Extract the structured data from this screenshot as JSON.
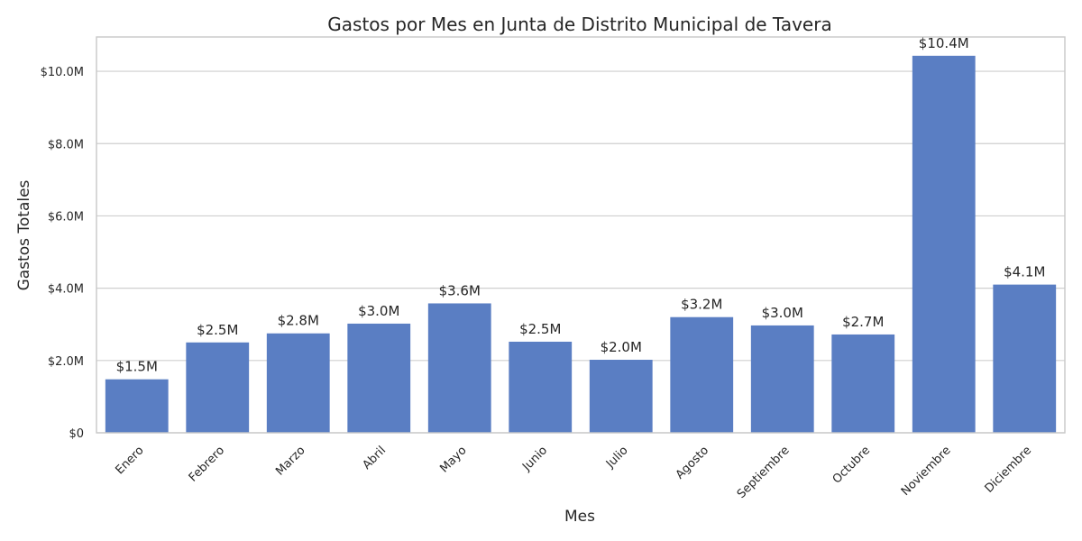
{
  "chart_data": {
    "type": "bar",
    "title": "Gastos por Mes en Junta de Distrito Municipal de Tavera",
    "xlabel": "Mes",
    "ylabel": "Gastos Totales",
    "categories": [
      "Enero",
      "Febrero",
      "Marzo",
      "Abril",
      "Mayo",
      "Junio",
      "Julio",
      "Agosto",
      "Septiembre",
      "Octubre",
      "Noviembre",
      "Diciembre"
    ],
    "values": [
      1480000,
      2500000,
      2750000,
      3020000,
      3580000,
      2520000,
      2020000,
      3200000,
      2970000,
      2720000,
      10430000,
      4100000
    ],
    "value_labels": [
      "$1.5M",
      "$2.5M",
      "$2.8M",
      "$3.0M",
      "$3.6M",
      "$2.5M",
      "$2.0M",
      "$3.2M",
      "$3.0M",
      "$2.7M",
      "$10.4M",
      "$4.1M"
    ],
    "ylim": [
      0,
      10950000
    ],
    "yticks": [
      0,
      2000000,
      4000000,
      6000000,
      8000000,
      10000000
    ],
    "ytick_labels": [
      "$0",
      "$2.0M",
      "$4.0M",
      "$6.0M",
      "$8.0M",
      "$10.0M"
    ],
    "grid": true,
    "bar_color": "#5a7ec3",
    "legend": "none"
  }
}
